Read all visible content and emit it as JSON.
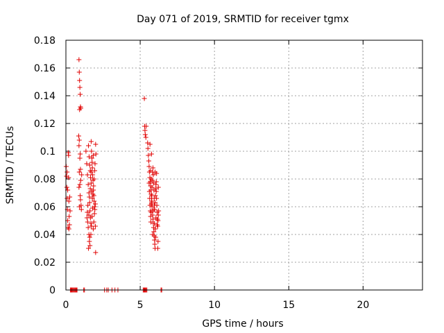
{
  "chart_data": {
    "type": "scatter",
    "title": "Day 071 of 2019, SRMTID for receiver tgmx",
    "xlabel": "GPS time / hours",
    "ylabel": "SRMTID / TECUs",
    "xlim": [
      0,
      24
    ],
    "ylim": [
      0,
      0.18
    ],
    "xticks": [
      0,
      5,
      10,
      15,
      20
    ],
    "xtick_labels": [
      "0",
      "5",
      "10",
      "15",
      "20"
    ],
    "yticks": [
      0,
      0.02,
      0.04,
      0.06,
      0.08,
      0.1,
      0.12,
      0.14,
      0.16,
      0.18
    ],
    "ytick_labels": [
      "0",
      "0.02",
      "0.04",
      "0.06",
      "0.08",
      "0.1",
      "0.12",
      "0.14",
      "0.16",
      "0.18"
    ],
    "grid": true,
    "marker": "plus",
    "marker_color": "#e00000",
    "points": [
      [
        0.02,
        0.089
      ],
      [
        0.04,
        0.082
      ],
      [
        0.06,
        0.074
      ],
      [
        0.08,
        0.066
      ],
      [
        0.1,
        0.058
      ],
      [
        0.12,
        0.05
      ],
      [
        0.14,
        0.045
      ],
      [
        0.16,
        0.099
      ],
      [
        0.18,
        0.081
      ],
      [
        0.2,
        0.064
      ],
      [
        0.22,
        0.053
      ],
      [
        0.24,
        0.047
      ],
      [
        0.26,
        0.067
      ],
      [
        0.08,
        0.085
      ],
      [
        0.12,
        0.072
      ],
      [
        0.2,
        0.044
      ],
      [
        0.28,
        0.057
      ],
      [
        0.18,
        0.097
      ],
      [
        0.88,
        0.166
      ],
      [
        0.9,
        0.157
      ],
      [
        0.92,
        0.151
      ],
      [
        0.94,
        0.146
      ],
      [
        0.96,
        0.141
      ],
      [
        0.98,
        0.132
      ],
      [
        1.0,
        0.131
      ],
      [
        0.92,
        0.13
      ],
      [
        0.86,
        0.111
      ],
      [
        0.9,
        0.108
      ],
      [
        0.88,
        0.104
      ],
      [
        0.96,
        0.098
      ],
      [
        0.94,
        0.095
      ],
      [
        0.98,
        0.087
      ],
      [
        1.0,
        0.079
      ],
      [
        0.9,
        0.085
      ],
      [
        0.94,
        0.076
      ],
      [
        0.88,
        0.074
      ],
      [
        0.96,
        0.068
      ],
      [
        0.92,
        0.06
      ],
      [
        1.02,
        0.061
      ],
      [
        1.04,
        0.058
      ],
      [
        0.98,
        0.065
      ],
      [
        1.06,
        0.083
      ],
      [
        1.35,
        0.1
      ],
      [
        1.4,
        0.091
      ],
      [
        1.45,
        0.083
      ],
      [
        1.5,
        0.076
      ],
      [
        1.55,
        0.07
      ],
      [
        1.6,
        0.063
      ],
      [
        1.62,
        0.057
      ],
      [
        1.65,
        0.052
      ],
      [
        1.68,
        0.048
      ],
      [
        1.5,
        0.045
      ],
      [
        1.55,
        0.04
      ],
      [
        1.6,
        0.038
      ],
      [
        1.58,
        0.035
      ],
      [
        1.62,
        0.032
      ],
      [
        1.52,
        0.03
      ],
      [
        1.7,
        0.107
      ],
      [
        1.72,
        0.1
      ],
      [
        1.75,
        0.095
      ],
      [
        1.78,
        0.088
      ],
      [
        1.8,
        0.083
      ],
      [
        1.82,
        0.079
      ],
      [
        1.85,
        0.072
      ],
      [
        1.88,
        0.068
      ],
      [
        1.9,
        0.064
      ],
      [
        1.92,
        0.06
      ],
      [
        1.95,
        0.058
      ],
      [
        1.98,
        0.062
      ],
      [
        2.0,
        0.105
      ],
      [
        2.02,
        0.098
      ],
      [
        1.96,
        0.091
      ],
      [
        1.94,
        0.086
      ],
      [
        1.9,
        0.08
      ],
      [
        1.86,
        0.075
      ],
      [
        1.82,
        0.069
      ],
      [
        1.78,
        0.066
      ],
      [
        1.74,
        0.071
      ],
      [
        1.7,
        0.077
      ],
      [
        1.66,
        0.081
      ],
      [
        1.64,
        0.086
      ],
      [
        1.6,
        0.09
      ],
      [
        1.56,
        0.096
      ],
      [
        1.52,
        0.104
      ],
      [
        1.48,
        0.061
      ],
      [
        1.44,
        0.056
      ],
      [
        1.42,
        0.052
      ],
      [
        1.46,
        0.049
      ],
      [
        1.54,
        0.054
      ],
      [
        1.58,
        0.067
      ],
      [
        1.68,
        0.04
      ],
      [
        1.72,
        0.046
      ],
      [
        1.76,
        0.053
      ],
      [
        1.84,
        0.044
      ],
      [
        1.88,
        0.049
      ],
      [
        1.92,
        0.055
      ],
      [
        1.98,
        0.046
      ],
      [
        2.0,
        0.027
      ],
      [
        1.8,
        0.059
      ],
      [
        1.64,
        0.073
      ],
      [
        1.7,
        0.085
      ],
      [
        1.76,
        0.092
      ],
      [
        1.84,
        0.097
      ],
      [
        5.28,
        0.138
      ],
      [
        5.3,
        0.118
      ],
      [
        5.32,
        0.115
      ],
      [
        5.34,
        0.112
      ],
      [
        5.38,
        0.11
      ],
      [
        5.4,
        0.118
      ],
      [
        5.5,
        0.106
      ],
      [
        5.52,
        0.102
      ],
      [
        5.55,
        0.097
      ],
      [
        5.58,
        0.093
      ],
      [
        5.6,
        0.089
      ],
      [
        5.62,
        0.085
      ],
      [
        5.65,
        0.081
      ],
      [
        5.68,
        0.078
      ],
      [
        5.7,
        0.075
      ],
      [
        5.72,
        0.072
      ],
      [
        5.74,
        0.069
      ],
      [
        5.76,
        0.066
      ],
      [
        5.78,
        0.063
      ],
      [
        5.8,
        0.06
      ],
      [
        5.82,
        0.057
      ],
      [
        5.84,
        0.054
      ],
      [
        5.86,
        0.051
      ],
      [
        5.88,
        0.048
      ],
      [
        5.9,
        0.045
      ],
      [
        5.92,
        0.042
      ],
      [
        5.94,
        0.039
      ],
      [
        5.96,
        0.036
      ],
      [
        5.98,
        0.033
      ],
      [
        6.0,
        0.03
      ],
      [
        5.6,
        0.077
      ],
      [
        5.62,
        0.071
      ],
      [
        5.64,
        0.066
      ],
      [
        5.66,
        0.061
      ],
      [
        5.68,
        0.057
      ],
      [
        5.7,
        0.053
      ],
      [
        5.72,
        0.049
      ],
      [
        5.74,
        0.056
      ],
      [
        5.76,
        0.062
      ],
      [
        5.78,
        0.068
      ],
      [
        5.8,
        0.074
      ],
      [
        5.82,
        0.079
      ],
      [
        5.84,
        0.085
      ],
      [
        5.86,
        0.088
      ],
      [
        5.88,
        0.083
      ],
      [
        5.9,
        0.077
      ],
      [
        5.92,
        0.072
      ],
      [
        5.94,
        0.066
      ],
      [
        5.96,
        0.061
      ],
      [
        5.98,
        0.058
      ],
      [
        6.0,
        0.063
      ],
      [
        6.02,
        0.068
      ],
      [
        6.04,
        0.073
      ],
      [
        6.06,
        0.076
      ],
      [
        6.08,
        0.071
      ],
      [
        6.1,
        0.066
      ],
      [
        6.12,
        0.061
      ],
      [
        6.14,
        0.056
      ],
      [
        6.16,
        0.051
      ],
      [
        6.18,
        0.046
      ],
      [
        6.2,
        0.05
      ],
      [
        6.22,
        0.054
      ],
      [
        6.24,
        0.057
      ],
      [
        6.2,
        0.035
      ],
      [
        6.18,
        0.03
      ],
      [
        6.1,
        0.084
      ],
      [
        6.08,
        0.078
      ],
      [
        6.02,
        0.044
      ],
      [
        6.04,
        0.038
      ],
      [
        5.96,
        0.048
      ],
      [
        5.84,
        0.04
      ],
      [
        5.7,
        0.086
      ],
      [
        5.74,
        0.08
      ],
      [
        5.78,
        0.064
      ],
      [
        5.92,
        0.058
      ],
      [
        6.06,
        0.052
      ],
      [
        6.14,
        0.047
      ],
      [
        6.22,
        0.074
      ],
      [
        6.0,
        0.085
      ],
      [
        5.66,
        0.105
      ],
      [
        5.76,
        0.098
      ],
      [
        0.3,
        0.0
      ],
      [
        0.35,
        0.0
      ],
      [
        0.4,
        0.0
      ],
      [
        0.45,
        0.0
      ],
      [
        0.5,
        0.0
      ],
      [
        0.55,
        0.0
      ],
      [
        0.6,
        0.0
      ],
      [
        0.65,
        0.0
      ],
      [
        0.7,
        0.0
      ],
      [
        0.75,
        0.0
      ],
      [
        1.2,
        0.0
      ],
      [
        1.25,
        0.0
      ],
      [
        2.6,
        0.0
      ],
      [
        2.75,
        0.0
      ],
      [
        2.85,
        0.0
      ],
      [
        3.1,
        0.0
      ],
      [
        3.3,
        0.0
      ],
      [
        3.5,
        0.0
      ],
      [
        5.2,
        0.0
      ],
      [
        5.25,
        0.0
      ],
      [
        5.3,
        0.0
      ],
      [
        5.35,
        0.0
      ],
      [
        5.4,
        0.0
      ],
      [
        5.45,
        0.0
      ],
      [
        6.4,
        0.0
      ],
      [
        6.45,
        0.0
      ]
    ]
  }
}
